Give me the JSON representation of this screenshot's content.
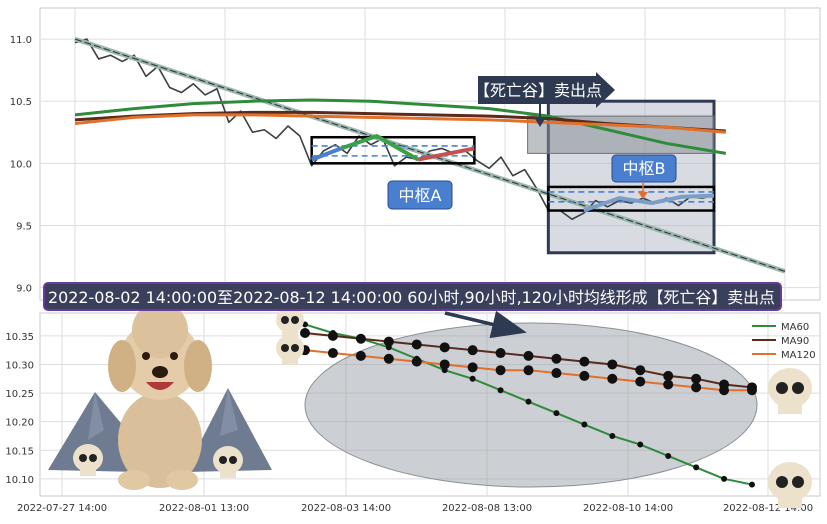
{
  "chart_data": [
    {
      "type": "line",
      "panel": "upper",
      "ylim": [
        8.9,
        11.25
      ],
      "yticks": [
        9.0,
        9.5,
        10.0,
        10.5,
        11.0
      ],
      "ytick_labels": [
        "9.0",
        "9.5",
        "10.0",
        "10.5",
        "11.0"
      ],
      "grid": true,
      "series": [
        {
          "role": "price",
          "color": "#3a3f44",
          "points": [
            [
              0,
              10.97
            ],
            [
              0.4,
              11.0
            ],
            [
              0.8,
              10.84
            ],
            [
              1.2,
              10.87
            ],
            [
              1.6,
              10.82
            ],
            [
              2.0,
              10.87
            ],
            [
              2.4,
              10.7
            ],
            [
              2.8,
              10.78
            ],
            [
              3.2,
              10.61
            ],
            [
              3.6,
              10.57
            ],
            [
              4.0,
              10.64
            ],
            [
              4.4,
              10.55
            ],
            [
              4.8,
              10.6
            ],
            [
              5.2,
              10.33
            ],
            [
              5.6,
              10.42
            ],
            [
              6.0,
              10.25
            ],
            [
              6.4,
              10.27
            ],
            [
              6.8,
              10.2
            ],
            [
              7.2,
              10.3
            ],
            [
              7.6,
              10.22
            ],
            [
              8.0,
              9.98
            ],
            [
              8.4,
              10.1
            ],
            [
              8.8,
              10.15
            ],
            [
              9.2,
              10.08
            ],
            [
              9.6,
              10.22
            ],
            [
              10.0,
              10.15
            ],
            [
              10.4,
              10.2
            ],
            [
              10.8,
              9.98
            ],
            [
              11.2,
              10.05
            ],
            [
              11.6,
              10.03
            ],
            [
              12.0,
              10.1
            ],
            [
              12.4,
              10.12
            ],
            [
              12.8,
              10.08
            ],
            [
              13.2,
              10.1
            ],
            [
              13.6,
              10.02
            ],
            [
              14.0,
              9.96
            ],
            [
              14.4,
              10.05
            ],
            [
              14.8,
              9.9
            ],
            [
              15.2,
              9.95
            ],
            [
              15.6,
              9.8
            ],
            [
              16.0,
              9.62
            ],
            [
              16.4,
              9.62
            ],
            [
              16.8,
              9.55
            ],
            [
              17.2,
              9.6
            ],
            [
              17.6,
              9.7
            ],
            [
              18.0,
              9.65
            ],
            [
              18.4,
              9.7
            ],
            [
              18.8,
              9.68
            ],
            [
              19.2,
              9.72
            ],
            [
              19.6,
              9.68
            ],
            [
              20.0,
              9.72
            ],
            [
              20.4,
              9.66
            ],
            [
              20.8,
              9.73
            ],
            [
              21.2,
              9.72
            ],
            [
              21.6,
              9.74
            ]
          ]
        },
        {
          "role": "trend",
          "color": "#b9dfd6",
          "points": [
            [
              0,
              11.0
            ],
            [
              24,
              9.13
            ]
          ]
        },
        {
          "name": "MA60",
          "color": "#2e8b3a",
          "points": [
            [
              0,
              10.39
            ],
            [
              2,
              10.44
            ],
            [
              4,
              10.48
            ],
            [
              6,
              10.5
            ],
            [
              8,
              10.51
            ],
            [
              10,
              10.5
            ],
            [
              12,
              10.47
            ],
            [
              14,
              10.44
            ],
            [
              16,
              10.38
            ],
            [
              18,
              10.27
            ],
            [
              20,
              10.16
            ],
            [
              22,
              10.08
            ]
          ]
        },
        {
          "name": "MA90",
          "color": "#5a2a1a",
          "points": [
            [
              0,
              10.35
            ],
            [
              2,
              10.38
            ],
            [
              4,
              10.4
            ],
            [
              6,
              10.41
            ],
            [
              8,
              10.41
            ],
            [
              10,
              10.4
            ],
            [
              12,
              10.39
            ],
            [
              14,
              10.38
            ],
            [
              16,
              10.36
            ],
            [
              18,
              10.32
            ],
            [
              20,
              10.29
            ],
            [
              22,
              10.26
            ]
          ]
        },
        {
          "name": "MA120",
          "color": "#e0702a",
          "points": [
            [
              0,
              10.32
            ],
            [
              2,
              10.37
            ],
            [
              4,
              10.39
            ],
            [
              6,
              10.39
            ],
            [
              8,
              10.38
            ],
            [
              10,
              10.37
            ],
            [
              12,
              10.36
            ],
            [
              14,
              10.35
            ],
            [
              16,
              10.33
            ],
            [
              18,
              10.31
            ],
            [
              20,
              10.29
            ],
            [
              22,
              10.25
            ]
          ]
        },
        {
          "role": "zhongshu-A-stroke-1",
          "color": "#4a7fd0",
          "points": [
            [
              8.0,
              10.03
            ],
            [
              9.0,
              10.12
            ]
          ]
        },
        {
          "role": "zhongshu-A-stroke-2",
          "color": "#3aa04a",
          "points": [
            [
              9.0,
              10.12
            ],
            [
              10.2,
              10.22
            ],
            [
              11.6,
              10.03
            ]
          ]
        },
        {
          "role": "zhongshu-A-stroke-3",
          "color": "#c45050",
          "points": [
            [
              11.6,
              10.03
            ],
            [
              13.5,
              10.12
            ]
          ]
        },
        {
          "role": "zhongshu-B-strokes",
          "color": "#7a9ec8",
          "points": [
            [
              17.2,
              9.62
            ],
            [
              18.4,
              9.72
            ],
            [
              19.5,
              9.68
            ],
            [
              20.5,
              9.73
            ],
            [
              21.6,
              9.74
            ]
          ]
        }
      ],
      "annotations": {
        "zhongshu_a": {
          "label": "中枢A",
          "x_range": [
            8.0,
            13.5
          ],
          "y_range": [
            10.0,
            10.21
          ],
          "inner": [
            10.06,
            10.14
          ]
        },
        "zhongshu_b": {
          "label": "中枢B",
          "x_range": [
            16.0,
            21.6
          ],
          "y_range": [
            9.62,
            9.81
          ],
          "inner": [
            9.69,
            9.77
          ]
        },
        "death_valley": {
          "label": "【死亡谷】卖出点",
          "x_range": [
            16.0,
            21.6
          ],
          "y_range": [
            9.28,
            10.5
          ]
        },
        "inner_grey": {
          "x_range": [
            15.3,
            21.6
          ],
          "y_range": [
            10.08,
            10.38
          ]
        }
      },
      "x_positions": [
        0,
        24
      ]
    },
    {
      "type": "line",
      "panel": "lower",
      "ylim": [
        10.07,
        10.39
      ],
      "yticks": [
        10.1,
        10.15,
        10.2,
        10.25,
        10.3,
        10.35
      ],
      "ytick_labels": [
        "10.10",
        "10.15",
        "10.20",
        "10.25",
        "10.30",
        "10.35"
      ],
      "categories": [
        "2022-07-27 14:00",
        "2022-08-01 13:00",
        "2022-08-03 14:00",
        "2022-08-08 13:00",
        "2022-08-10 14:00",
        "2022-08-12 14:00"
      ],
      "legend": {
        "position": "top-right",
        "entries": [
          "MA60",
          "MA90",
          "MA120"
        ]
      },
      "grid": true,
      "series": [
        {
          "name": "MA60",
          "color": "#2e8b3a",
          "x": [
            0,
            1,
            2,
            3,
            4,
            5,
            6,
            7,
            8,
            9,
            10,
            11,
            12,
            13,
            14,
            15,
            16
          ],
          "values": [
            10.37,
            10.355,
            10.345,
            10.33,
            10.31,
            10.29,
            10.275,
            10.255,
            10.235,
            10.215,
            10.195,
            10.175,
            10.16,
            10.14,
            10.12,
            10.1,
            10.09
          ]
        },
        {
          "name": "MA90",
          "color": "#5a2a1a",
          "x": [
            0,
            1,
            2,
            3,
            4,
            5,
            6,
            7,
            8,
            9,
            10,
            11,
            12,
            13,
            14,
            15,
            16
          ],
          "values": [
            10.355,
            10.35,
            10.345,
            10.34,
            10.335,
            10.33,
            10.325,
            10.32,
            10.315,
            10.31,
            10.305,
            10.3,
            10.29,
            10.28,
            10.275,
            10.265,
            10.26
          ]
        },
        {
          "name": "MA120",
          "color": "#e0702a",
          "x": [
            0,
            1,
            2,
            3,
            4,
            5,
            6,
            7,
            8,
            9,
            10,
            11,
            12,
            13,
            14,
            15,
            16
          ],
          "values": [
            10.325,
            10.32,
            10.315,
            10.31,
            10.305,
            10.3,
            10.295,
            10.29,
            10.29,
            10.285,
            10.28,
            10.275,
            10.27,
            10.265,
            10.26,
            10.255,
            10.255
          ]
        }
      ]
    }
  ],
  "banner": {
    "text": "2022-08-02 14:00:00至2022-08-12 14:00:00 60小时,90小时,120小时均线形成【死亡谷】卖出点",
    "bg_color": "#3a3f5c",
    "border_color": "#6a3a9a"
  },
  "colors": {
    "ma60": "#2e8b3a",
    "ma90": "#5a2a1a",
    "ma120": "#e0702a",
    "badge_bg": "#4a7fd0",
    "dark_navy": "#2d3a52"
  },
  "decorations": [
    "poodle-dog-illustration",
    "skull-icon",
    "mountain-icon"
  ]
}
